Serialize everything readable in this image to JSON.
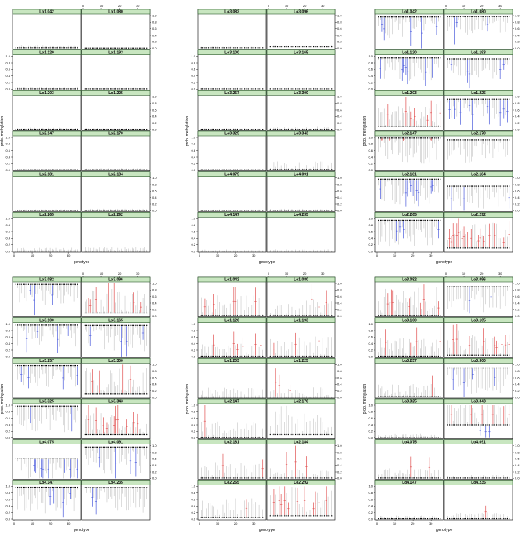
{
  "figure": {
    "xlabel": "genotype",
    "ylabel": "prob. methylation"
  },
  "colors": {
    "strip_fill": "#c8e6c0",
    "strip_border": "#2c5a2c",
    "neutral_bar": "#b0b0b0",
    "hyper_bar": "#e05050",
    "hypo_bar": "#4a5adc",
    "median_dot": "#000000"
  },
  "chart_data": [
    {
      "type": "lattice-interval-plot",
      "panel_id": "A",
      "xlabel": "genotype",
      "ylabel": "prob. methylation",
      "x_ticks": [
        "0",
        "10",
        "20",
        "30"
      ],
      "y_ticks": [
        "0.0",
        "0.2",
        "0.4",
        "0.6",
        "0.8",
        "1.0"
      ],
      "xlim": [
        0,
        36
      ],
      "ylim": [
        0,
        1
      ],
      "strips": [
        "Lo1.042",
        "Lo1.080",
        "Lo1.120",
        "Lo1.193",
        "Lo1.203",
        "Lo1.225",
        "Lo2.147",
        "Lo2.170",
        "Lo2.181",
        "Lo2.184",
        "Lo2.265",
        "Lo2.292"
      ],
      "baselines": [
        0.02,
        0.01,
        0.01,
        0.01,
        0.01,
        0.01,
        0.01,
        0.01,
        0.01,
        0.01,
        0.01,
        0.01
      ],
      "activity": [
        0.1,
        0.03,
        0.05,
        0.03,
        0.05,
        0.03,
        0.03,
        0.05,
        0.03,
        0.05,
        0.1,
        0.12
      ],
      "hyper_frac": [
        0,
        0,
        0,
        0,
        0,
        0,
        0,
        0,
        0,
        0,
        0,
        0
      ],
      "hypo_frac": [
        0,
        0,
        0,
        0,
        0,
        0,
        0,
        0,
        0,
        0,
        0,
        0
      ]
    },
    {
      "type": "lattice-interval-plot",
      "panel_id": "B",
      "xlabel": "genotype",
      "ylabel": "prob. methylation",
      "x_ticks": [
        "0",
        "10",
        "20",
        "30"
      ],
      "y_ticks": [
        "0.0",
        "0.2",
        "0.4",
        "0.6",
        "0.8",
        "1.0"
      ],
      "xlim": [
        0,
        36
      ],
      "ylim": [
        0,
        1
      ],
      "strips": [
        "Lo3.082",
        "Lo3.096",
        "Lo3.100",
        "Lo3.165",
        "Lo3.257",
        "Lo3.300",
        "Lo3.325",
        "Lo3.343",
        "Lo4.075",
        "Lo4.091",
        "Lo4.147",
        "Lo4.235"
      ],
      "baselines": [
        0.02,
        0.05,
        0.01,
        0.01,
        0.01,
        0.01,
        0.01,
        0.02,
        0.01,
        0.01,
        0.01,
        0.01
      ],
      "activity": [
        0.04,
        0.06,
        0.03,
        0.03,
        0.03,
        0.08,
        0.03,
        0.25,
        0.03,
        0.05,
        0.05,
        0.06
      ],
      "hyper_frac": [
        0,
        0,
        0,
        0,
        0,
        0,
        0,
        0,
        0,
        0,
        0,
        0
      ],
      "hypo_frac": [
        0,
        0,
        0,
        0,
        0,
        0,
        0,
        0,
        0,
        0,
        0,
        0
      ]
    },
    {
      "type": "lattice-interval-plot",
      "panel_id": "C",
      "xlabel": "genotype",
      "ylabel": "prob. methylation",
      "x_ticks": [
        "0",
        "10",
        "20",
        "30"
      ],
      "y_ticks": [
        "0.0",
        "0.2",
        "0.4",
        "0.6",
        "0.8",
        "1.0"
      ],
      "xlim": [
        0,
        36
      ],
      "ylim": [
        0,
        1
      ],
      "strips": [
        "Lo1.042",
        "Lo1.080",
        "Lo1.120",
        "Lo1.193",
        "Lo1.203",
        "Lo1.225",
        "Lo2.147",
        "Lo2.170",
        "Lo2.181",
        "Lo2.184",
        "Lo2.265",
        "Lo2.292"
      ],
      "baselines": [
        0.96,
        0.97,
        0.95,
        0.92,
        0.1,
        0.93,
        0.98,
        0.93,
        0.96,
        0.75,
        0.95,
        0.1
      ],
      "activity": [
        0.7,
        0.6,
        0.7,
        0.6,
        0.7,
        0.6,
        0.8,
        0.7,
        0.8,
        0.7,
        0.8,
        0.8
      ],
      "hyper_frac": [
        0,
        0,
        0,
        0,
        0.18,
        0,
        0.12,
        0,
        0,
        0,
        0,
        0.3
      ],
      "hypo_frac": [
        0.25,
        0.12,
        0.15,
        0.15,
        0,
        0.2,
        0,
        0,
        0.15,
        0.05,
        0.12,
        0
      ]
    },
    {
      "type": "lattice-interval-plot",
      "panel_id": "D",
      "xlabel": "genotype",
      "ylabel": "prob. methylation",
      "x_ticks": [
        "0",
        "10",
        "20",
        "30"
      ],
      "y_ticks": [
        "0.0",
        "0.2",
        "0.4",
        "0.6",
        "0.8",
        "1.0"
      ],
      "xlim": [
        0,
        36
      ],
      "ylim": [
        0,
        1
      ],
      "strips": [
        "Lo3.082",
        "Lo3.096",
        "Lo3.100",
        "Lo3.165",
        "Lo3.257",
        "Lo3.300",
        "Lo3.325",
        "Lo3.343",
        "Lo4.075",
        "Lo4.091",
        "Lo4.147",
        "Lo4.235"
      ],
      "baselines": [
        0.97,
        0.1,
        0.97,
        0.96,
        0.97,
        0.1,
        0.97,
        0.1,
        0.6,
        0.96,
        0.97,
        0.96
      ],
      "activity": [
        0.8,
        0.8,
        0.7,
        0.8,
        0.7,
        0.8,
        0.8,
        0.8,
        0.7,
        0.8,
        0.8,
        0.8
      ],
      "hyper_frac": [
        0,
        0.3,
        0,
        0,
        0,
        0.2,
        0,
        0.3,
        0,
        0,
        0,
        0
      ],
      "hypo_frac": [
        0.15,
        0,
        0.12,
        0.15,
        0.1,
        0,
        0.05,
        0,
        0.25,
        0.05,
        0.15,
        0.15
      ]
    },
    {
      "type": "lattice-interval-plot",
      "panel_id": "E",
      "xlabel": "genotype",
      "ylabel": "prob. methylation",
      "x_ticks": [
        "0",
        "10",
        "20",
        "30"
      ],
      "y_ticks": [
        "0.0",
        "0.2",
        "0.4",
        "0.6",
        "0.8",
        "1.0"
      ],
      "xlim": [
        0,
        36
      ],
      "ylim": [
        0,
        1
      ],
      "strips": [
        "Lo1.042",
        "Lo1.080",
        "Lo1.120",
        "Lo1.193",
        "Lo1.203",
        "Lo1.225",
        "Lo2.147",
        "Lo2.170",
        "Lo2.181",
        "Lo2.184",
        "Lo2.265",
        "Lo2.292"
      ],
      "baselines": [
        0.02,
        0.02,
        0.02,
        0.02,
        0.01,
        0.01,
        0.01,
        0.1,
        0.01,
        0.01,
        0.05,
        0.1
      ],
      "activity": [
        0.7,
        0.5,
        0.4,
        0.6,
        0.3,
        0.3,
        0.5,
        0.9,
        0.5,
        0.3,
        0.6,
        0.9
      ],
      "hyper_frac": [
        0.15,
        0.12,
        0.12,
        0.05,
        0,
        0.03,
        0.03,
        0,
        0.08,
        0.05,
        0.03,
        0.3
      ],
      "hypo_frac": [
        0,
        0,
        0,
        0,
        0,
        0,
        0,
        0,
        0,
        0,
        0,
        0
      ]
    },
    {
      "type": "lattice-interval-plot",
      "panel_id": "F",
      "xlabel": "genotype",
      "ylabel": "prob. methylation",
      "x_ticks": [
        "0",
        "10",
        "20",
        "30"
      ],
      "y_ticks": [
        "0.0",
        "0.2",
        "0.4",
        "0.6",
        "0.8",
        "1.0"
      ],
      "xlim": [
        0,
        36
      ],
      "ylim": [
        0,
        1
      ],
      "strips": [
        "Lo3.082",
        "Lo3.096",
        "Lo3.100",
        "Lo3.165",
        "Lo3.257",
        "Lo3.300",
        "Lo3.325",
        "Lo3.343",
        "Lo4.075",
        "Lo4.091",
        "Lo4.147",
        "Lo4.235"
      ],
      "baselines": [
        0.02,
        0.9,
        0.02,
        0.05,
        0.02,
        0.9,
        0.02,
        0.4,
        0.01,
        0.01,
        0.01,
        0.01
      ],
      "activity": [
        0.9,
        0.8,
        0.6,
        0.8,
        0.4,
        0.8,
        0.1,
        0.8,
        0.3,
        0.1,
        0.1,
        0.2
      ],
      "hyper_frac": [
        0.25,
        0,
        0.1,
        0.2,
        0.05,
        0,
        0,
        0.2,
        0.05,
        0,
        0,
        0.05
      ],
      "hypo_frac": [
        0,
        0.12,
        0,
        0,
        0,
        0.15,
        0,
        0.1,
        0,
        0,
        0,
        0
      ]
    }
  ]
}
